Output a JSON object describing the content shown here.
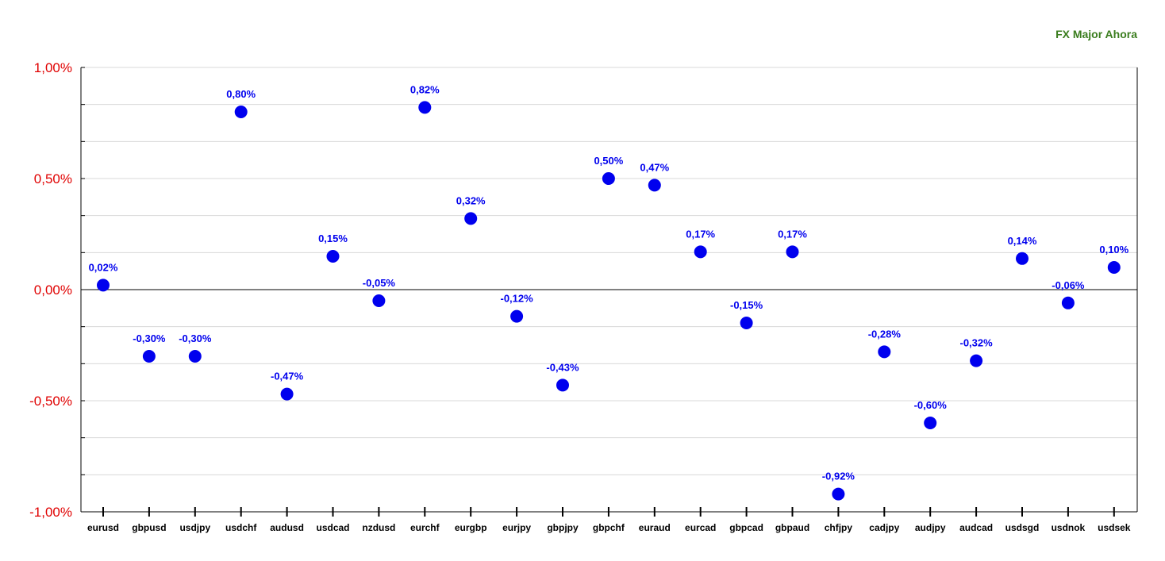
{
  "title": "FX Major Ahora",
  "colors": {
    "marker": "#0000ee",
    "ytick": "#e00000",
    "title": "#3a7d1e",
    "grid": "#d8d8d8",
    "axis": "#000000"
  },
  "chart_data": {
    "type": "scatter",
    "title": "FX Major Ahora",
    "xlabel": "",
    "ylabel": "",
    "ylim": [
      -1.0,
      1.0
    ],
    "grid": true,
    "yticks": [
      {
        "value": 1.0,
        "label": "1,00%"
      },
      {
        "value": 0.5,
        "label": "0,50%"
      },
      {
        "value": 0.0,
        "label": "0,00%"
      },
      {
        "value": -0.5,
        "label": "-0,50%"
      },
      {
        "value": -1.0,
        "label": "-1,00%"
      }
    ],
    "categories": [
      "eurusd",
      "gbpusd",
      "usdjpy",
      "usdchf",
      "audusd",
      "usdcad",
      "nzdusd",
      "eurchf",
      "eurgbp",
      "eurjpy",
      "gbpjpy",
      "gbpchf",
      "euraud",
      "eurcad",
      "gbpcad",
      "gbpaud",
      "chfjpy",
      "cadjpy",
      "audjpy",
      "audcad",
      "usdsgd",
      "usdnok",
      "usdsek"
    ],
    "values": [
      0.02,
      -0.3,
      -0.3,
      0.8,
      -0.47,
      0.15,
      -0.05,
      0.82,
      0.32,
      -0.12,
      -0.43,
      0.5,
      0.47,
      0.17,
      -0.15,
      0.17,
      -0.92,
      -0.28,
      -0.6,
      -0.32,
      0.14,
      -0.06,
      0.1
    ],
    "labels": [
      "0,02%",
      "-0,30%",
      "-0,30%",
      "0,80%",
      "-0,47%",
      "0,15%",
      "-0,05%",
      "0,82%",
      "0,32%",
      "-0,12%",
      "-0,43%",
      "0,50%",
      "0,47%",
      "0,17%",
      "-0,15%",
      "0,17%",
      "-0,92%",
      "-0,28%",
      "-0,60%",
      "-0,32%",
      "0,14%",
      "-0,06%",
      "0,10%"
    ]
  }
}
